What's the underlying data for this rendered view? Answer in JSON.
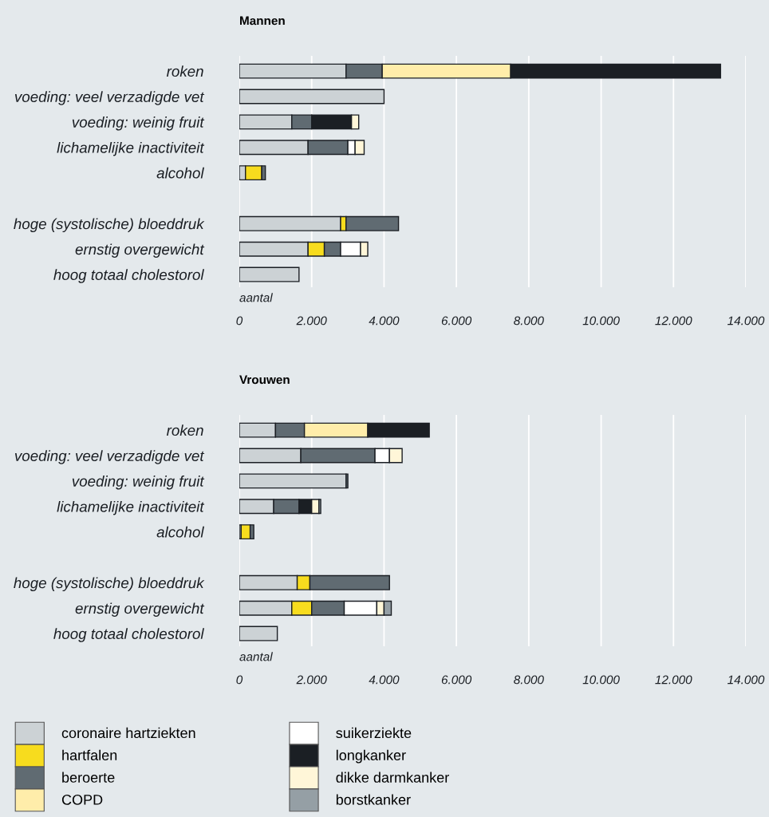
{
  "chart_data": [
    {
      "type": "bar",
      "orientation": "horizontal",
      "stacked": true,
      "title": "Mannen",
      "xlabel": "aantal",
      "categories": [
        "roken",
        "voeding: veel verzadigde vet",
        "voeding: weinig fruit",
        "lichamelijke inactiviteit",
        "alcohol",
        null,
        "hoge (systolische) bloeddruk",
        "ernstig overgewicht",
        "hoog totaal cholestorol"
      ],
      "series": [
        {
          "name": "coronaire hartziekten",
          "color": "#ccd2d5",
          "values": [
            2950,
            4000,
            1450,
            1900,
            170,
            null,
            2800,
            1900,
            1650
          ]
        },
        {
          "name": "hartfalen",
          "color": "#f7dc1e",
          "values": [
            null,
            null,
            null,
            null,
            450,
            null,
            150,
            450,
            null
          ]
        },
        {
          "name": "beroerte",
          "color": "#606b72",
          "values": [
            1000,
            null,
            550,
            1100,
            100,
            null,
            1450,
            450,
            null
          ]
        },
        {
          "name": "COPD",
          "color": "#ffedaa",
          "values": [
            3550,
            null,
            null,
            null,
            null,
            null,
            null,
            null,
            null
          ]
        },
        {
          "name": "suikerziekte",
          "color": "#ffffff",
          "values": [
            null,
            null,
            null,
            200,
            null,
            null,
            null,
            550,
            null
          ]
        },
        {
          "name": "longkanker",
          "color": "#1b1f24",
          "values": [
            5800,
            null,
            1100,
            null,
            null,
            null,
            null,
            null,
            null
          ]
        },
        {
          "name": "dikke darmkanker",
          "color": "#fff6d8",
          "values": [
            null,
            null,
            200,
            250,
            null,
            null,
            null,
            200,
            null
          ]
        },
        {
          "name": "borstkanker",
          "color": "#959fa5",
          "values": [
            null,
            null,
            null,
            null,
            null,
            null,
            null,
            null,
            null
          ]
        }
      ],
      "xlim": [
        0,
        14000
      ],
      "xticks": [
        0,
        {
          "value": 2000,
          "label": "2.000"
        },
        {
          "value": 4000,
          "label": "4.000"
        },
        {
          "value": 6000,
          "label": "6.000"
        },
        {
          "value": 8000,
          "label": "8.000"
        },
        {
          "value": 10000,
          "label": "10.000"
        },
        {
          "value": 12000,
          "label": "12.000"
        },
        {
          "value": 14000,
          "label": "14.000"
        }
      ],
      "grid": "x",
      "legend": "bottom"
    },
    {
      "type": "bar",
      "orientation": "horizontal",
      "stacked": true,
      "title": "Vrouwen",
      "xlabel": "aantal",
      "categories": [
        "roken",
        "voeding: veel verzadigde vet",
        "voeding: weinig fruit",
        "lichamelijke inactiviteit",
        "alcohol",
        null,
        "hoge (systolische) bloeddruk",
        "ernstig overgewicht",
        "hoog totaal cholestorol"
      ],
      "series": [
        {
          "color": "#ccd2d5",
          "values": [
            1000,
            1700,
            2950,
            950,
            50,
            null,
            1600,
            1450,
            1050
          ]
        },
        {
          "color": "#f7dc1e",
          "values": [
            null,
            null,
            null,
            null,
            250,
            null,
            350,
            550,
            null
          ]
        },
        {
          "color": "#606b72",
          "values": [
            800,
            2050,
            50,
            700,
            100,
            null,
            2200,
            900,
            null
          ]
        },
        {
          "color": "#ffedaa",
          "values": [
            1750,
            null,
            null,
            null,
            null,
            null,
            null,
            null,
            null
          ]
        },
        {
          "color": "#ffffff",
          "values": [
            null,
            400,
            null,
            null,
            null,
            null,
            null,
            900,
            null
          ]
        },
        {
          "color": "#1b1f24",
          "values": [
            1700,
            null,
            null,
            350,
            null,
            null,
            null,
            null,
            null
          ]
        },
        {
          "color": "#fff6d8",
          "values": [
            null,
            350,
            null,
            200,
            null,
            null,
            null,
            200,
            null
          ]
        },
        {
          "color": "#959fa5",
          "values": [
            null,
            null,
            null,
            50,
            null,
            null,
            null,
            200,
            null
          ]
        }
      ],
      "xlim": [
        0,
        14000
      ],
      "xticks": [
        0,
        {
          "value": 2000,
          "label": "2.000"
        },
        {
          "value": 4000,
          "label": "4.000"
        },
        {
          "value": 6000,
          "label": "6.000"
        },
        {
          "value": 8000,
          "label": "8.000"
        },
        {
          "value": 10000,
          "label": "10.000"
        },
        {
          "value": 12000,
          "label": "12.000"
        },
        {
          "value": 14000,
          "label": "14.000"
        }
      ],
      "grid": "x"
    }
  ]
}
